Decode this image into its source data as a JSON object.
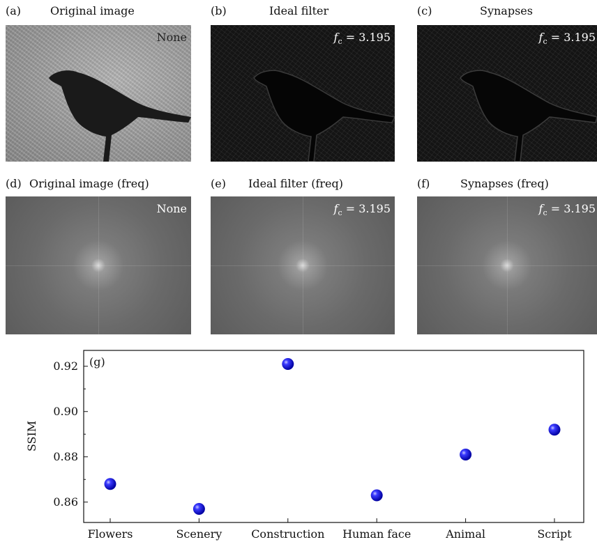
{
  "panels": [
    {
      "tag": "(a)",
      "title": "Original image",
      "overlay": "None"
    },
    {
      "tag": "(b)",
      "title": "Ideal filter",
      "overlay_var": "f",
      "overlay_sub": "c",
      "overlay_val": " = 3.195"
    },
    {
      "tag": "(c)",
      "title": "Synapses",
      "overlay_var": "f",
      "overlay_sub": "c",
      "overlay_val": " = 3.195"
    },
    {
      "tag": "(d)",
      "title": "Original image (freq)",
      "overlay": "None"
    },
    {
      "tag": "(e)",
      "title": "Ideal filter (freq)",
      "overlay_var": "f",
      "overlay_sub": "c",
      "overlay_val": " = 3.195"
    },
    {
      "tag": "(f)",
      "title": "Synapses (freq)",
      "overlay_var": "f",
      "overlay_sub": "c",
      "overlay_val": " = 3.195"
    }
  ],
  "chart_data": {
    "type": "scatter",
    "panel_label": "(g)",
    "categories": [
      "Flowers",
      "Scenery",
      "Construction",
      "Human face",
      "Animal",
      "Script"
    ],
    "values": [
      0.868,
      0.857,
      0.921,
      0.863,
      0.881,
      0.892
    ],
    "ylabel": "SSIM",
    "xlabel": "",
    "yticks": [
      "0.86",
      "0.88",
      "0.90",
      "0.92"
    ],
    "ylim": [
      0.851,
      0.927
    ],
    "marker_color": "#0000ee"
  }
}
